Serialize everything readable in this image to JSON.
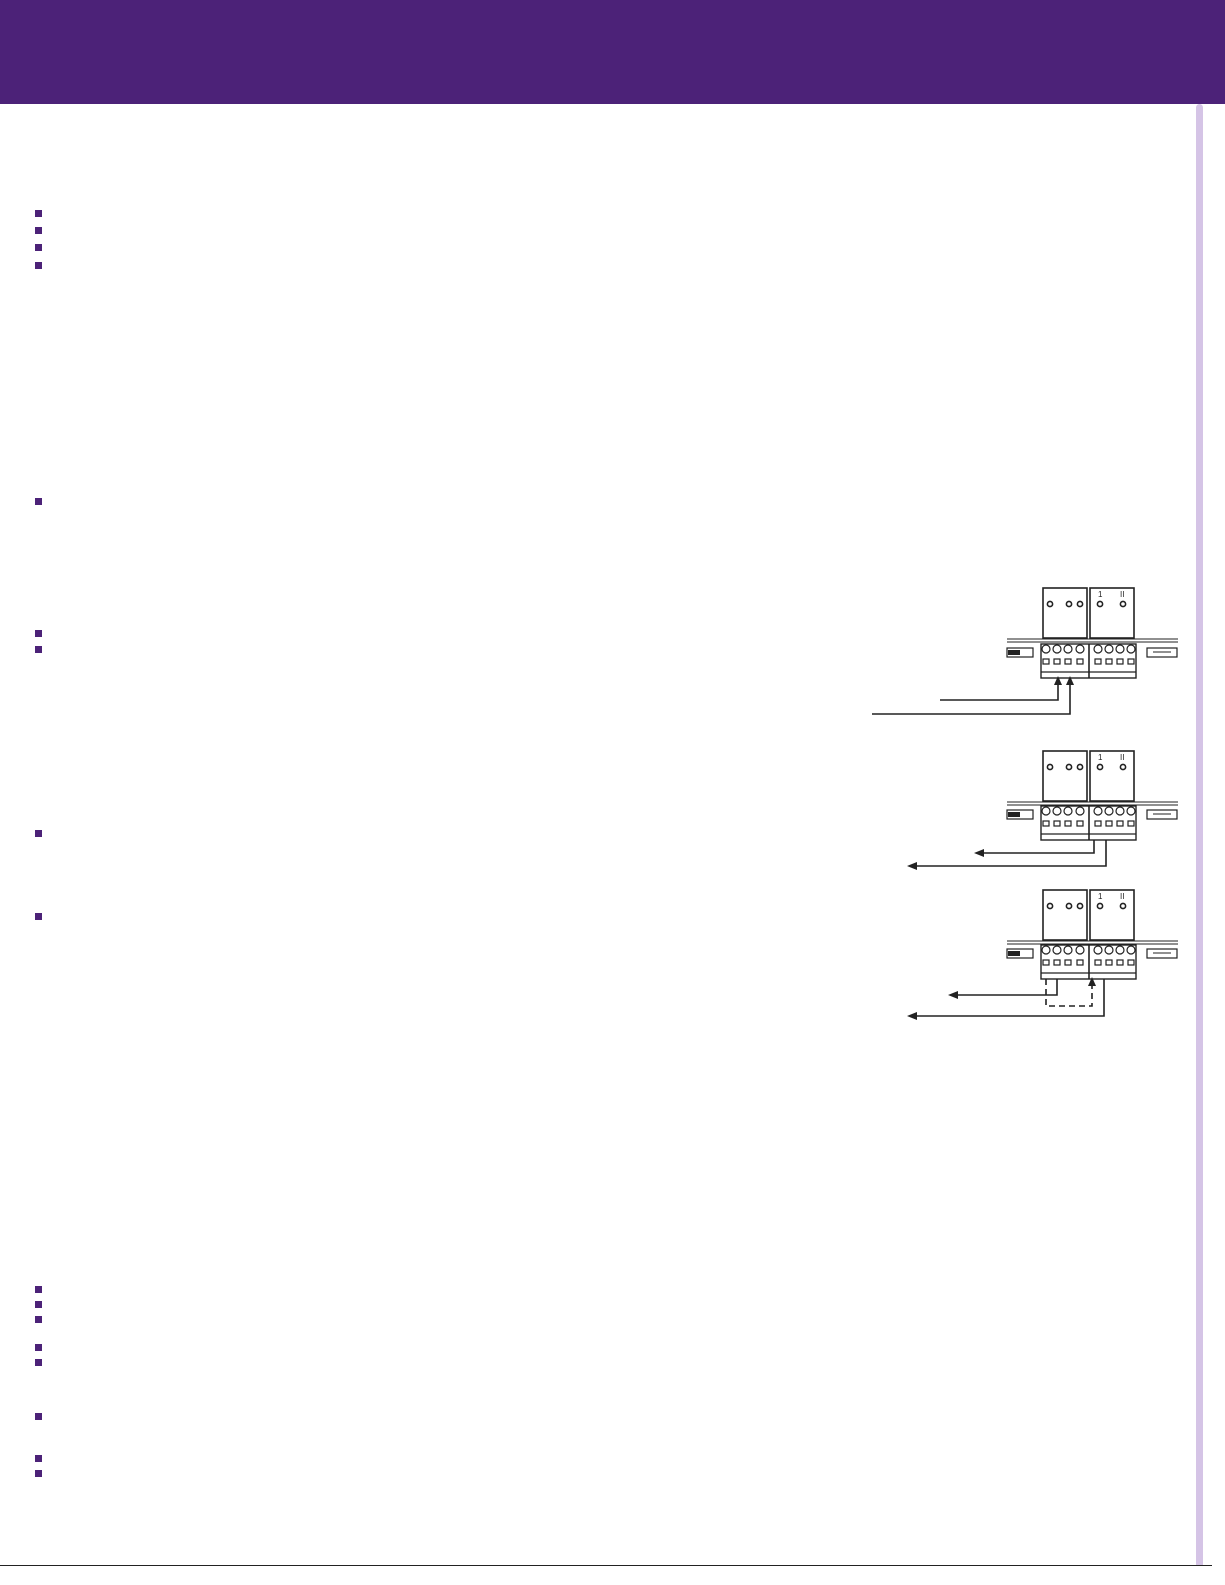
{
  "theme": {
    "header_color": "#4c2278",
    "side_rule_color": "#d5c4e6",
    "bullet_color": "#4c2278",
    "line_color": "#222222"
  },
  "diagrams": [
    {
      "relay_labels": [
        "1",
        "II"
      ]
    },
    {
      "relay_labels": [
        "1",
        "II"
      ]
    },
    {
      "relay_labels": [
        "1",
        "II"
      ]
    }
  ]
}
